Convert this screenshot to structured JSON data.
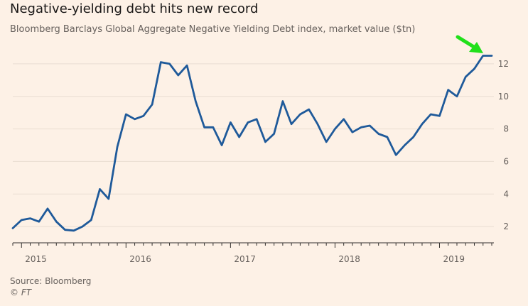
{
  "title": "Negative-yielding debt hits new record",
  "subtitle": "Bloomberg Barclays Global Aggregate Negative Yielding Debt index, market value ($tn)",
  "source": "Source: Bloomberg",
  "copyright": "© FT",
  "colors": {
    "background": "#fdf1e6",
    "line": "#1f5a9a",
    "annotation_arrow": "#21e01a",
    "grid": "#e9ddd2"
  },
  "annotation": {
    "icon": "arrow-pointing-to-latest-value"
  },
  "chart_data": {
    "type": "line",
    "y_ticks": [
      "2",
      "4",
      "6",
      "8",
      "10",
      "12"
    ],
    "ylim": [
      1,
      13
    ],
    "x_ticks": [
      "2015",
      "2016",
      "2017",
      "2018",
      "2019"
    ],
    "xlim": [
      "2014-12",
      "2019-07"
    ],
    "grid": true,
    "y_axis_side": "right",
    "series": [
      {
        "x": [
          "2014-12",
          "2015-01",
          "2015-02",
          "2015-03",
          "2015-04",
          "2015-05",
          "2015-06",
          "2015-07",
          "2015-08",
          "2015-09",
          "2015-10",
          "2015-11",
          "2015-12",
          "2016-01",
          "2016-02",
          "2016-03",
          "2016-04",
          "2016-05",
          "2016-06",
          "2016-07",
          "2016-08",
          "2016-09",
          "2016-10",
          "2016-11",
          "2016-12",
          "2017-01",
          "2017-02",
          "2017-03",
          "2017-04",
          "2017-05",
          "2017-06",
          "2017-07",
          "2017-08",
          "2017-09",
          "2017-10",
          "2017-11",
          "2017-12",
          "2018-01",
          "2018-02",
          "2018-03",
          "2018-04",
          "2018-05",
          "2018-06",
          "2018-07",
          "2018-08",
          "2018-09",
          "2018-10",
          "2018-11",
          "2018-12",
          "2019-01",
          "2019-02",
          "2019-03",
          "2019-04",
          "2019-05",
          "2019-06",
          "2019-07"
        ],
        "values": [
          1.9,
          2.4,
          2.5,
          2.3,
          3.1,
          2.3,
          1.8,
          1.75,
          2.0,
          2.4,
          4.3,
          3.7,
          6.9,
          8.9,
          8.6,
          8.8,
          9.5,
          12.1,
          12.0,
          11.3,
          11.9,
          9.7,
          8.1,
          8.1,
          7.0,
          8.4,
          7.5,
          8.4,
          8.6,
          7.2,
          7.7,
          9.7,
          8.3,
          8.9,
          9.2,
          8.3,
          7.2,
          8.0,
          8.6,
          7.8,
          8.1,
          8.2,
          7.7,
          7.5,
          6.4,
          7.0,
          7.5,
          8.3,
          8.9,
          8.8,
          10.4,
          10.0,
          11.2,
          11.7,
          12.5,
          12.5
        ]
      }
    ]
  }
}
